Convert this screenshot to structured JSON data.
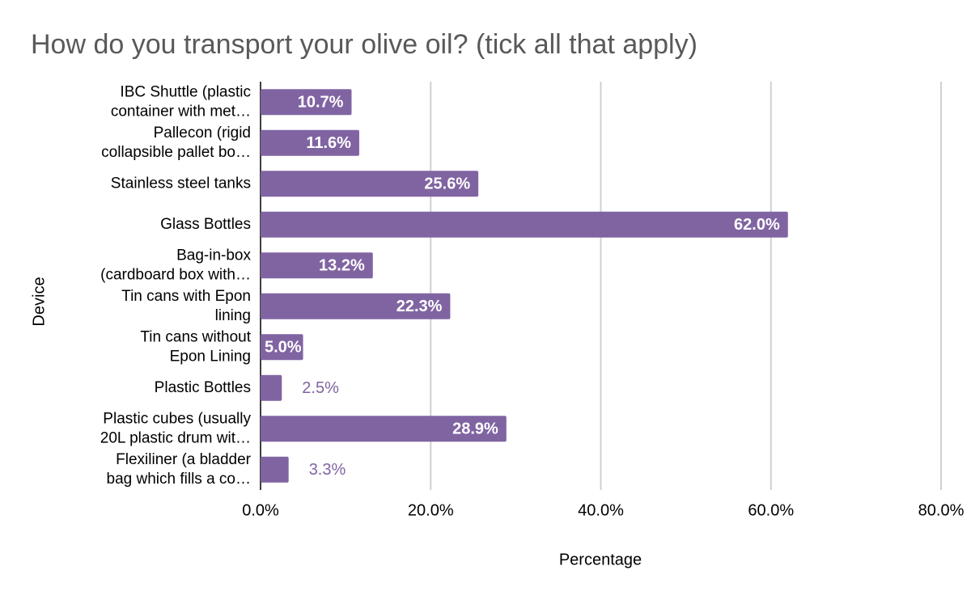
{
  "chart_data": {
    "type": "bar",
    "orientation": "horizontal",
    "title": "How do you transport your olive oil?  (tick all that apply)",
    "x_label": "Percentage",
    "y_label": "Device",
    "categories": [
      [
        "IBC Shuttle (plastic",
        "container with met…"
      ],
      [
        "Pallecon (rigid",
        "collapsible pallet bo…"
      ],
      [
        "Stainless steel tanks"
      ],
      [
        "Glass Bottles"
      ],
      [
        "Bag-in-box",
        "(cardboard box with…"
      ],
      [
        "Tin cans with Epon",
        "lining"
      ],
      [
        "Tin cans without",
        "Epon Lining"
      ],
      [
        "Plastic Bottles"
      ],
      [
        "Plastic cubes (usually",
        "20L plastic drum wit…"
      ],
      [
        "Flexiliner (a bladder",
        "bag which fills a co…"
      ]
    ],
    "values": [
      10.7,
      11.6,
      25.6,
      62.0,
      13.2,
      22.3,
      5.0,
      2.5,
      28.9,
      3.3
    ],
    "value_labels": [
      "10.7%",
      "11.6%",
      "25.6%",
      "62.0%",
      "13.2%",
      "22.3%",
      "5.0%",
      "2.5%",
      "28.9%",
      "3.3%"
    ],
    "color": "#8064a2",
    "xlim": [
      0,
      80
    ],
    "xticks": [
      {
        "value": 0,
        "label": "0.0%"
      },
      {
        "value": 20,
        "label": "20.0%"
      },
      {
        "value": 40,
        "label": "40.0%"
      },
      {
        "value": 60,
        "label": "60.0%"
      },
      {
        "value": 80,
        "label": "80.0%"
      }
    ],
    "grid": true
  }
}
